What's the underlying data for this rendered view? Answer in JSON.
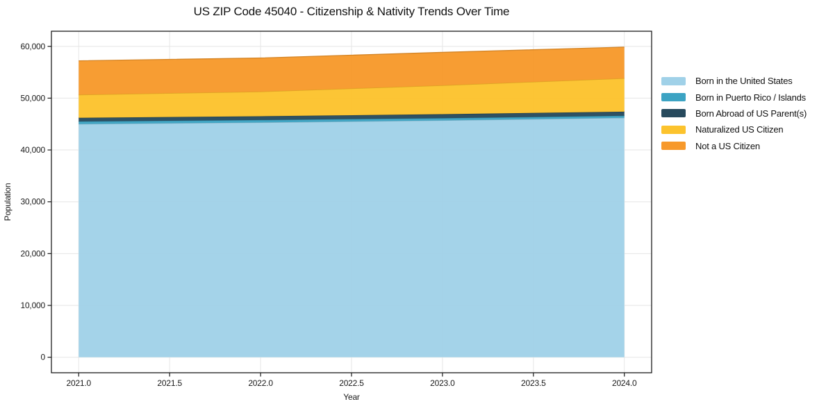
{
  "chart_data": {
    "type": "area",
    "stacked": true,
    "title": "US ZIP Code 45040 - Citizenship & Nativity Trends Over Time",
    "xlabel": "Year",
    "ylabel": "Population",
    "x": [
      2021,
      2022,
      2023,
      2024
    ],
    "series": [
      {
        "name": "Born in the United States",
        "color": "#A0D1E8",
        "values": [
          45000,
          45300,
          45700,
          46200
        ]
      },
      {
        "name": "Born in Puerto Rico / Islands",
        "color": "#3CA3C3",
        "values": [
          500,
          480,
          440,
          400
        ]
      },
      {
        "name": "Born Abroad of US Parent(s)",
        "color": "#274A5D",
        "values": [
          700,
          730,
          760,
          790
        ]
      },
      {
        "name": "Naturalized US Citizen",
        "color": "#FCC32D",
        "values": [
          4450,
          4740,
          5560,
          6430
        ]
      },
      {
        "name": "Not a US Citizen",
        "color": "#F7992B",
        "values": [
          6560,
          6500,
          6380,
          6030
        ]
      }
    ],
    "xlim": [
      2020.85,
      2024.15
    ],
    "ylim": [
      -2996,
      62916
    ],
    "xticks": [
      {
        "v": 2021.0,
        "label": "2021.0"
      },
      {
        "v": 2021.5,
        "label": "2021.5"
      },
      {
        "v": 2022.0,
        "label": "2022.0"
      },
      {
        "v": 2022.5,
        "label": "2022.5"
      },
      {
        "v": 2023.0,
        "label": "2023.0"
      },
      {
        "v": 2023.5,
        "label": "2023.5"
      },
      {
        "v": 2024.0,
        "label": "2024.0"
      }
    ],
    "yticks": [
      {
        "v": 0,
        "label": "0"
      },
      {
        "v": 10000,
        "label": "10,000"
      },
      {
        "v": 20000,
        "label": "20,000"
      },
      {
        "v": 30000,
        "label": "30,000"
      },
      {
        "v": 40000,
        "label": "40,000"
      },
      {
        "v": 50000,
        "label": "50,000"
      },
      {
        "v": 60000,
        "label": "60,000"
      }
    ],
    "grid": true,
    "grid_color": "#e6e6e6",
    "spine_color": "#1a1a1a",
    "background": "#ffffff",
    "legend_position": "right"
  }
}
